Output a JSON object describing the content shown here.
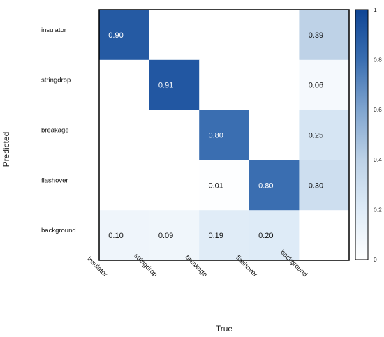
{
  "chart_data": {
    "type": "heatmap",
    "title": "",
    "xlabel": "True",
    "ylabel": "Predicted",
    "x_categories": [
      "insulator",
      "stringdrop",
      "breakage",
      "flashover",
      "background"
    ],
    "y_categories": [
      "insulator",
      "stringdrop",
      "breakage",
      "flashover",
      "background"
    ],
    "matrix": [
      [
        0.9,
        null,
        null,
        null,
        0.39
      ],
      [
        null,
        0.91,
        null,
        null,
        0.06
      ],
      [
        null,
        null,
        0.8,
        null,
        0.25
      ],
      [
        null,
        null,
        0.01,
        0.8,
        0.3
      ],
      [
        0.1,
        0.09,
        0.19,
        0.2,
        null
      ]
    ],
    "colorbar": {
      "range": [
        0,
        1
      ],
      "ticks": [
        0,
        0.2,
        0.4,
        0.6,
        0.8,
        1
      ],
      "tick_labels": [
        "0",
        "0.2",
        "0.4",
        "0.6",
        "0.8",
        "1"
      ]
    },
    "colormap": {
      "low": "#f7fbff",
      "high": "#08306b",
      "name": "Blues"
    },
    "grid": false
  }
}
